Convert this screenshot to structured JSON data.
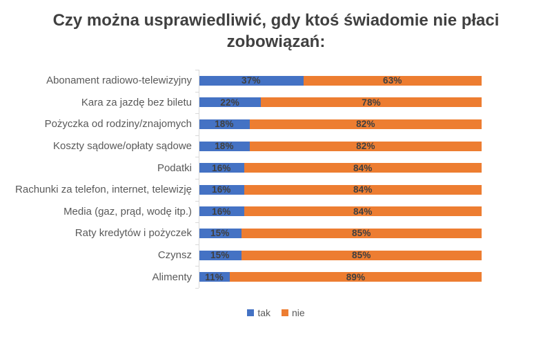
{
  "chart_data": {
    "type": "bar",
    "orientation": "horizontal",
    "stacked": true,
    "title": "Czy można usprawiedliwić, gdy ktoś świadomie nie płaci zobowiązań:",
    "xlabel": "",
    "ylabel": "",
    "xlim": [
      0,
      100
    ],
    "value_format": "percent",
    "grid": false,
    "legend_position": "bottom-center",
    "axis_line_color": "#d9d9d9",
    "data_label_color": "#404040",
    "category_label_color": "#595959",
    "title_color": "#404040",
    "categories": [
      "Abonament radiowo-telewizyjny",
      "Kara za jazdę bez biletu",
      "Pożyczka od rodziny/znajomych",
      "Koszty sądowe/opłaty sądowe",
      "Podatki",
      "Rachunki za telefon, internet, telewizję",
      "Media (gaz, prąd, wodę itp.)",
      "Raty kredytów i pożyczek",
      "Czynsz",
      "Alimenty"
    ],
    "series": [
      {
        "name": "tak",
        "color": "#4472C4",
        "values": [
          37,
          22,
          18,
          18,
          16,
          16,
          16,
          15,
          15,
          11
        ],
        "labels": [
          "37%",
          "22%",
          "18%",
          "18%",
          "16%",
          "16%",
          "16%",
          "15%",
          "15%",
          "11%"
        ]
      },
      {
        "name": "nie",
        "color": "#ED7D31",
        "values": [
          63,
          78,
          82,
          82,
          84,
          84,
          84,
          85,
          85,
          89
        ],
        "labels": [
          "63%",
          "78%",
          "82%",
          "82%",
          "84%",
          "84%",
          "84%",
          "85%",
          "85%",
          "89%"
        ]
      }
    ]
  }
}
